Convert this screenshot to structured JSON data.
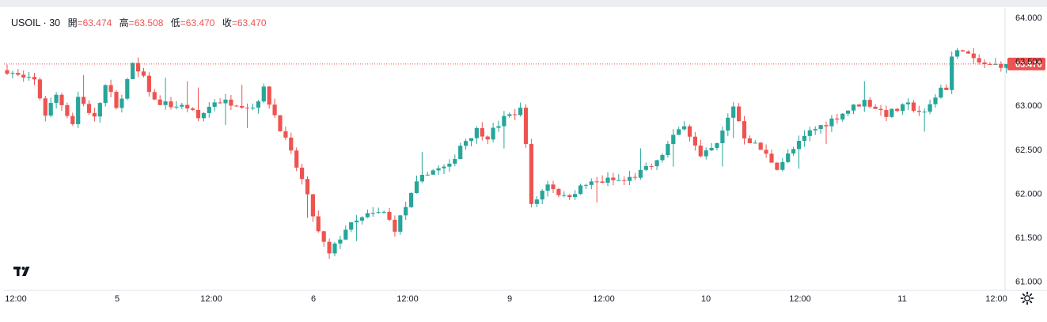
{
  "chart_data": {
    "type": "candlestick",
    "symbol": "USOIL",
    "interval": "30",
    "ohlc_labels": {
      "open": "開",
      "high": "高",
      "low": "低",
      "close": "收"
    },
    "ohlc_values": {
      "open": "63.474",
      "high": "63.508",
      "low": "63.470",
      "close": "63.470"
    },
    "last_price": 63.47,
    "last_price_label": "63.470",
    "y_ticks": [
      "61.000",
      "61.500",
      "62.000",
      "62.500",
      "63.000",
      "63.500",
      "64.000"
    ],
    "ylim": [
      61.0,
      64.0
    ],
    "x_ticks": [
      "12:00",
      "5",
      "12:00",
      "6",
      "12:00",
      "9",
      "12:00",
      "10",
      "12:00",
      "11",
      "12:00"
    ],
    "colors": {
      "up": "#26a69a",
      "down": "#ef5350",
      "price_line": "#ef5350",
      "axis_text": "#131722"
    },
    "path": [
      [
        63.4,
        0
      ],
      [
        63.3,
        3
      ],
      [
        63.28,
        5
      ],
      [
        62.9,
        7
      ],
      [
        63.12,
        9
      ],
      [
        62.8,
        12
      ],
      [
        63.1,
        13
      ],
      [
        62.85,
        16
      ],
      [
        63.22,
        18
      ],
      [
        63.12,
        19
      ],
      [
        62.95,
        20
      ],
      [
        63.45,
        23
      ],
      [
        63.3,
        25
      ],
      [
        63.05,
        27
      ],
      [
        63.0,
        30
      ],
      [
        62.98,
        33
      ],
      [
        62.85,
        35
      ],
      [
        63.05,
        38
      ],
      [
        63.03,
        42
      ],
      [
        62.98,
        45
      ],
      [
        63.18,
        47
      ],
      [
        62.6,
        51
      ],
      [
        62.15,
        54
      ],
      [
        61.55,
        57
      ],
      [
        61.3,
        59
      ],
      [
        61.6,
        62
      ],
      [
        61.75,
        66
      ],
      [
        61.78,
        69
      ],
      [
        61.6,
        71
      ],
      [
        62.1,
        75
      ],
      [
        62.25,
        77
      ],
      [
        62.3,
        81
      ],
      [
        62.55,
        83
      ],
      [
        62.72,
        86
      ],
      [
        62.65,
        88
      ],
      [
        62.85,
        91
      ],
      [
        62.95,
        94
      ],
      [
        62.6,
        95
      ],
      [
        61.85,
        96
      ],
      [
        62.12,
        99
      ],
      [
        61.95,
        102
      ],
      [
        62.1,
        106
      ],
      [
        62.15,
        110
      ],
      [
        62.14,
        113
      ],
      [
        62.2,
        115
      ],
      [
        62.35,
        119
      ],
      [
        62.55,
        121
      ],
      [
        62.8,
        124
      ],
      [
        62.4,
        127
      ],
      [
        62.55,
        130
      ],
      [
        63.0,
        133
      ],
      [
        62.65,
        135
      ],
      [
        62.5,
        138
      ],
      [
        62.3,
        141
      ],
      [
        62.5,
        144
      ],
      [
        62.7,
        147
      ],
      [
        62.8,
        150
      ],
      [
        62.95,
        154
      ],
      [
        63.05,
        157
      ],
      [
        62.9,
        161
      ],
      [
        63.0,
        165
      ],
      [
        62.9,
        168
      ],
      [
        63.2,
        171
      ],
      [
        63.2,
        172
      ],
      [
        63.55,
        173
      ],
      [
        63.65,
        175
      ],
      [
        63.5,
        177
      ],
      [
        63.45,
        180
      ],
      [
        63.47,
        183
      ]
    ],
    "x_range": [
      -0.5,
      183.5
    ]
  }
}
